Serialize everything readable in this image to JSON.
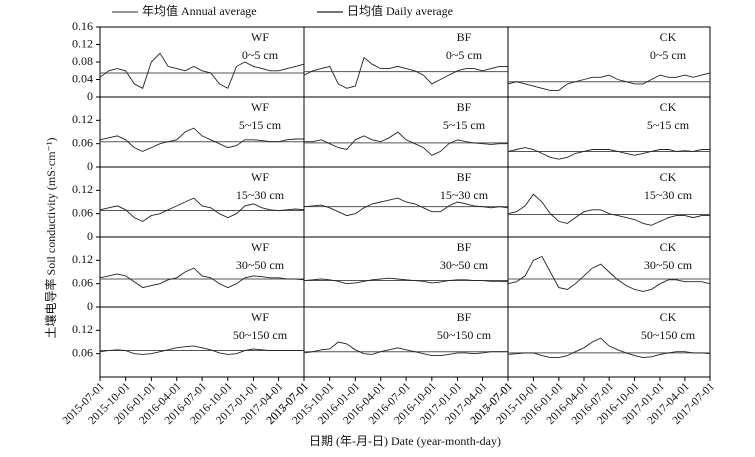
{
  "chart_data": {
    "type": "line",
    "series": [
      {
        "name": "年均值 Annual average",
        "color": "#555555"
      },
      {
        "name": "日均值 Daily average",
        "color": "#222222"
      }
    ],
    "ylabel": "土壤电导率 Soil conductivity (mS·cm⁻¹)",
    "xlabel": "日期 (年-月-日) Date (year-month-day)",
    "x": [
      "2015-07-01",
      "2015-08-01",
      "2015-09-01",
      "2015-10-01",
      "2015-11-01",
      "2015-12-01",
      "2016-01-01",
      "2016-02-01",
      "2016-03-01",
      "2016-04-01",
      "2016-05-01",
      "2016-06-01",
      "2016-07-01",
      "2016-08-01",
      "2016-09-01",
      "2016-10-01",
      "2016-11-01",
      "2016-12-01",
      "2017-01-01",
      "2017-02-01",
      "2017-03-01",
      "2017-04-01",
      "2017-05-01",
      "2017-06-01",
      "2017-07-01"
    ],
    "xlim": [
      "2015-07-01",
      "2017-07-01"
    ],
    "xticks": [
      "2015-07-01",
      "2015-10-01",
      "2016-01-01",
      "2016-04-01",
      "2016-07-01",
      "2016-10-01",
      "2017-01-01",
      "2017-04-01",
      "2017-07-01"
    ],
    "rows": [
      {
        "ylim": [
          0,
          0.16
        ],
        "yticks": [
          0,
          0.04,
          0.08,
          0.12,
          0.16
        ],
        "panels": [
          {
            "treatment": "WF",
            "depth": "0~5 cm",
            "annual": 0.055,
            "daily": [
              0.045,
              0.06,
              0.065,
              0.06,
              0.03,
              0.02,
              0.08,
              0.1,
              0.07,
              0.065,
              0.06,
              0.07,
              0.06,
              0.055,
              0.03,
              0.02,
              0.07,
              0.08,
              0.07,
              0.065,
              0.06,
              0.06,
              0.065,
              0.07,
              0.075
            ]
          },
          {
            "treatment": "BF",
            "depth": "0~5 cm",
            "annual": 0.058,
            "daily": [
              0.05,
              0.06,
              0.065,
              0.07,
              0.03,
              0.02,
              0.025,
              0.09,
              0.075,
              0.065,
              0.065,
              0.07,
              0.065,
              0.06,
              0.05,
              0.03,
              0.04,
              0.05,
              0.06,
              0.065,
              0.065,
              0.06,
              0.065,
              0.07,
              0.07
            ]
          },
          {
            "treatment": "CK",
            "depth": "0~5 cm",
            "annual": 0.035,
            "daily": [
              0.03,
              0.035,
              0.03,
              0.025,
              0.02,
              0.015,
              0.015,
              0.03,
              0.035,
              0.04,
              0.045,
              0.045,
              0.05,
              0.04,
              0.035,
              0.03,
              0.03,
              0.04,
              0.05,
              0.045,
              0.045,
              0.05,
              0.045,
              0.05,
              0.055
            ]
          }
        ]
      },
      {
        "ylim": [
          0,
          0.18
        ],
        "yticks": [
          0,
          0.06,
          0.12
        ],
        "panels": [
          {
            "treatment": "WF",
            "depth": "5~15 cm",
            "annual": 0.065,
            "daily": [
              0.07,
              0.075,
              0.08,
              0.07,
              0.05,
              0.04,
              0.05,
              0.06,
              0.065,
              0.07,
              0.09,
              0.1,
              0.08,
              0.07,
              0.06,
              0.05,
              0.055,
              0.07,
              0.07,
              0.068,
              0.065,
              0.065,
              0.07,
              0.072,
              0.072
            ]
          },
          {
            "treatment": "BF",
            "depth": "5~15 cm",
            "annual": 0.062,
            "daily": [
              0.065,
              0.065,
              0.07,
              0.06,
              0.05,
              0.045,
              0.07,
              0.08,
              0.07,
              0.065,
              0.075,
              0.09,
              0.07,
              0.06,
              0.05,
              0.03,
              0.04,
              0.06,
              0.07,
              0.065,
              0.062,
              0.06,
              0.058,
              0.06,
              0.06
            ]
          },
          {
            "treatment": "CK",
            "depth": "5~15 cm",
            "annual": 0.04,
            "daily": [
              0.04,
              0.045,
              0.05,
              0.045,
              0.035,
              0.025,
              0.02,
              0.025,
              0.035,
              0.04,
              0.045,
              0.045,
              0.045,
              0.04,
              0.035,
              0.03,
              0.035,
              0.04,
              0.045,
              0.045,
              0.04,
              0.042,
              0.04,
              0.045,
              0.045
            ]
          }
        ]
      },
      {
        "ylim": [
          0,
          0.18
        ],
        "yticks": [
          0,
          0.06,
          0.12
        ],
        "panels": [
          {
            "treatment": "WF",
            "depth": "15~30 cm",
            "annual": 0.068,
            "daily": [
              0.07,
              0.075,
              0.08,
              0.07,
              0.05,
              0.04,
              0.055,
              0.06,
              0.07,
              0.08,
              0.09,
              0.1,
              0.08,
              0.075,
              0.06,
              0.05,
              0.06,
              0.08,
              0.085,
              0.075,
              0.07,
              0.068,
              0.07,
              0.072,
              0.07
            ]
          },
          {
            "treatment": "BF",
            "depth": "15~30 cm",
            "annual": 0.078,
            "daily": [
              0.078,
              0.08,
              0.082,
              0.075,
              0.065,
              0.055,
              0.06,
              0.075,
              0.085,
              0.09,
              0.095,
              0.1,
              0.09,
              0.085,
              0.075,
              0.065,
              0.065,
              0.08,
              0.09,
              0.085,
              0.08,
              0.078,
              0.075,
              0.078,
              0.075
            ]
          },
          {
            "treatment": "CK",
            "depth": "15~30 cm",
            "annual": 0.058,
            "daily": [
              0.06,
              0.065,
              0.08,
              0.11,
              0.09,
              0.06,
              0.04,
              0.035,
              0.05,
              0.065,
              0.07,
              0.07,
              0.06,
              0.055,
              0.05,
              0.045,
              0.035,
              0.03,
              0.04,
              0.05,
              0.055,
              0.055,
              0.05,
              0.055,
              0.055
            ]
          }
        ]
      },
      {
        "ylim": [
          0,
          0.18
        ],
        "yticks": [
          0,
          0.06,
          0.12
        ],
        "panels": [
          {
            "treatment": "WF",
            "depth": "30~50 cm",
            "annual": 0.072,
            "daily": [
              0.075,
              0.08,
              0.085,
              0.08,
              0.065,
              0.05,
              0.055,
              0.06,
              0.07,
              0.075,
              0.09,
              0.1,
              0.08,
              0.075,
              0.06,
              0.05,
              0.06,
              0.075,
              0.08,
              0.078,
              0.075,
              0.075,
              0.072,
              0.072,
              0.07
            ]
          },
          {
            "treatment": "BF",
            "depth": "30~50 cm",
            "annual": 0.068,
            "daily": [
              0.068,
              0.07,
              0.072,
              0.07,
              0.066,
              0.06,
              0.062,
              0.066,
              0.07,
              0.072,
              0.074,
              0.072,
              0.07,
              0.068,
              0.066,
              0.062,
              0.064,
              0.068,
              0.07,
              0.07,
              0.068,
              0.068,
              0.066,
              0.066,
              0.065
            ]
          },
          {
            "treatment": "CK",
            "depth": "30~50 cm",
            "annual": 0.072,
            "daily": [
              0.06,
              0.065,
              0.08,
              0.12,
              0.13,
              0.09,
              0.05,
              0.045,
              0.06,
              0.08,
              0.1,
              0.11,
              0.09,
              0.07,
              0.055,
              0.045,
              0.04,
              0.045,
              0.06,
              0.07,
              0.07,
              0.065,
              0.065,
              0.065,
              0.06
            ]
          }
        ]
      },
      {
        "ylim": [
          0,
          0.18
        ],
        "yticks": [
          0.06,
          0.12
        ],
        "panels": [
          {
            "treatment": "WF",
            "depth": "50~150 cm",
            "annual": 0.068,
            "daily": [
              0.065,
              0.068,
              0.07,
              0.068,
              0.06,
              0.058,
              0.06,
              0.065,
              0.07,
              0.075,
              0.078,
              0.08,
              0.075,
              0.07,
              0.062,
              0.058,
              0.06,
              0.068,
              0.072,
              0.07,
              0.068,
              0.068,
              0.068,
              0.068,
              0.068
            ]
          },
          {
            "treatment": "BF",
            "depth": "50~150 cm",
            "annual": 0.065,
            "daily": [
              0.062,
              0.065,
              0.07,
              0.072,
              0.09,
              0.085,
              0.07,
              0.06,
              0.058,
              0.065,
              0.07,
              0.075,
              0.07,
              0.065,
              0.06,
              0.055,
              0.055,
              0.058,
              0.062,
              0.062,
              0.06,
              0.062,
              0.065,
              0.065,
              0.065
            ]
          },
          {
            "treatment": "CK",
            "depth": "50~150 cm",
            "annual": 0.062,
            "daily": [
              0.058,
              0.06,
              0.062,
              0.062,
              0.055,
              0.05,
              0.05,
              0.055,
              0.065,
              0.075,
              0.09,
              0.1,
              0.08,
              0.07,
              0.062,
              0.055,
              0.05,
              0.052,
              0.058,
              0.062,
              0.065,
              0.065,
              0.062,
              0.062,
              0.06
            ]
          }
        ]
      }
    ]
  }
}
